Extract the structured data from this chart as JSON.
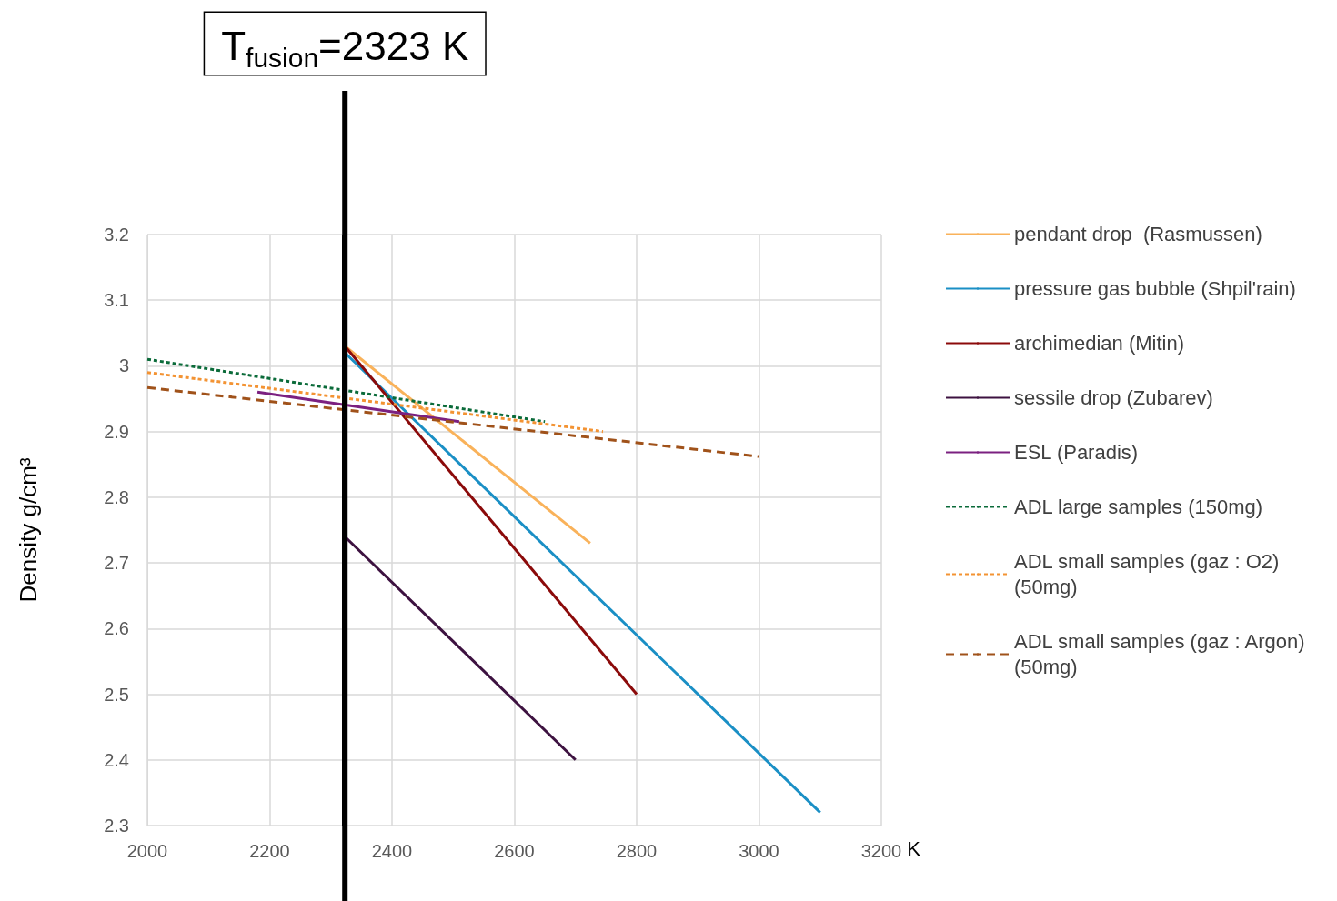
{
  "chart_data": {
    "type": "line",
    "xlabel": "K",
    "ylabel": "Density g/cm³",
    "xlim": [
      2000,
      3200
    ],
    "xticks": [
      2000,
      2200,
      2400,
      2600,
      2800,
      3000,
      3200
    ],
    "ylim": [
      2.3,
      3.2
    ],
    "yticks": [
      2.3,
      2.4,
      2.5,
      2.6,
      2.7,
      2.8,
      2.9,
      3,
      3.1,
      3.2
    ],
    "grid": true,
    "legend": "right",
    "marker": "none",
    "line_style": "solid",
    "ref_lines": [
      {
        "axis": "x",
        "value": 2323,
        "label": "T$_{fusion}$=2323 K",
        "color": "#000000"
      }
    ],
    "series": [
      {
        "name": "pendant drop  (Rasmussen)",
        "color": "#f9b25a",
        "x": [
          2323,
          2724
        ],
        "values": [
          3.03,
          2.73
        ]
      },
      {
        "name": "pressure gas bubble (Shpil'rain)",
        "color": "#1a8fc5",
        "x": [
          2323,
          3100
        ],
        "values": [
          3.02,
          2.32
        ]
      },
      {
        "name": "archimedian (Mitin)",
        "color": "#8b0a0a",
        "x": [
          2323,
          2800
        ],
        "values": [
          3.03,
          2.5
        ]
      },
      {
        "name": "sessile drop (Zubarev)",
        "color": "#3d1240",
        "x": [
          2323,
          2700
        ],
        "values": [
          2.74,
          2.4
        ]
      },
      {
        "name": "ESL (Paradis)",
        "color": "#7b2080",
        "x": [
          2180,
          2510
        ],
        "values": [
          2.96,
          2.915
        ]
      },
      {
        "name": "ADL large samples (150mg)",
        "color": "#0b6b3a",
        "line_style": "dotted",
        "x": [
          2000,
          2650
        ],
        "values": [
          3.01,
          2.915
        ]
      },
      {
        "name": "ADL small samples (gaz : O2) (50mg)",
        "color": "#f39333",
        "line_style": "dotted",
        "x": [
          2000,
          2745
        ],
        "values": [
          2.99,
          2.9
        ]
      },
      {
        "name": "ADL small samples (gaz : Argon) (50mg)",
        "color": "#a0521a",
        "line_style": "dashed",
        "x": [
          2000,
          3000
        ],
        "values": [
          2.967,
          2.862
        ]
      }
    ]
  }
}
